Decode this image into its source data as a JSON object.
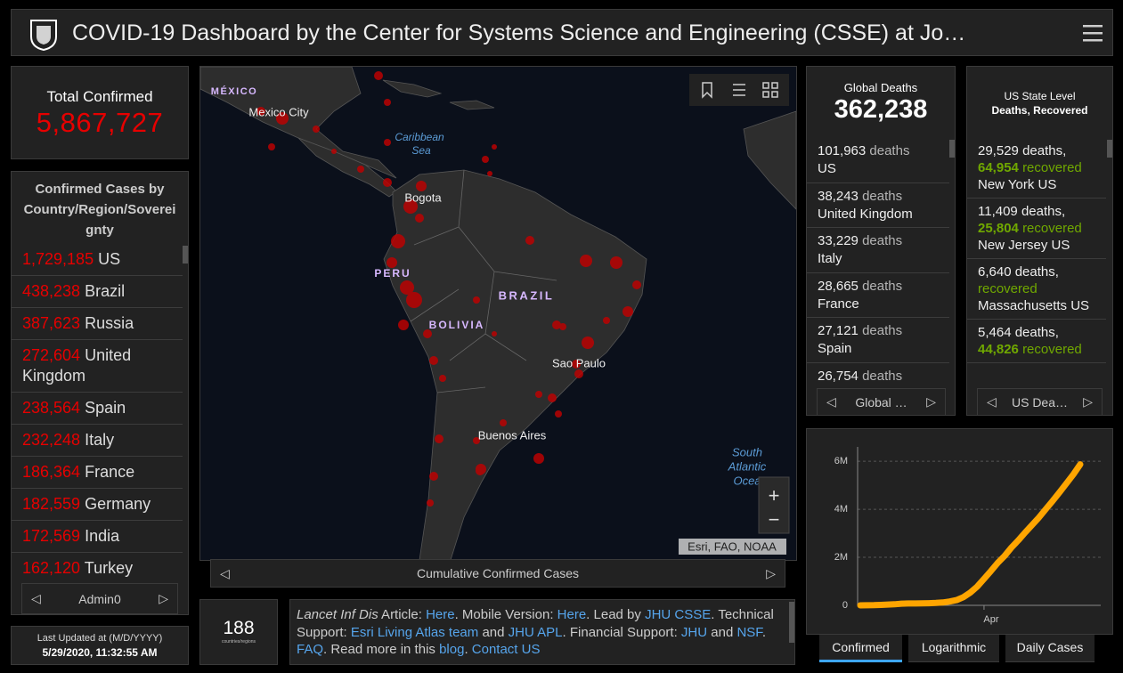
{
  "header": {
    "title": "COVID-19 Dashboard by the Center for Systems Science and Engineering (CSSE) at Jo…"
  },
  "total": {
    "label": "Total Confirmed",
    "value": "5,867,727"
  },
  "countries": {
    "title": "Confirmed Cases by Country/Region/Sovereignty",
    "items": [
      {
        "value": "1,729,185",
        "name": "US"
      },
      {
        "value": "438,238",
        "name": "Brazil"
      },
      {
        "value": "387,623",
        "name": "Russia"
      },
      {
        "value": "272,604",
        "name": "United Kingdom"
      },
      {
        "value": "238,564",
        "name": "Spain"
      },
      {
        "value": "232,248",
        "name": "Italy"
      },
      {
        "value": "186,364",
        "name": "France"
      },
      {
        "value": "182,559",
        "name": "Germany"
      },
      {
        "value": "172,569",
        "name": "India"
      },
      {
        "value": "162,120",
        "name": "Turkey"
      }
    ],
    "nav": "Admin0"
  },
  "updated": {
    "label": "Last Updated at (M/D/YYYY)",
    "value": "5/29/2020, 11:32:55 AM"
  },
  "map": {
    "labels": [
      "MÉXICO",
      "Mexico City",
      "Caribbean",
      "Sea",
      "Bogota",
      "PERU",
      "BRAZIL",
      "BOLIVIA",
      "Sao Paulo",
      "Buenos Aires",
      "South",
      "Atlantic",
      "Ocea"
    ],
    "attribution": "Esri, FAO, NOAA",
    "caption": "Cumulative Confirmed Cases"
  },
  "count": {
    "value": "188",
    "label": "countries/regions"
  },
  "info": {
    "segments": [
      {
        "text": "Lancet Inf Dis",
        "style": "italic"
      },
      {
        "text": " Article: "
      },
      {
        "text": "Here",
        "style": "link"
      },
      {
        "text": ". Mobile Version: "
      },
      {
        "text": "Here",
        "style": "link"
      },
      {
        "text": ". Lead by "
      },
      {
        "text": "JHU CSSE",
        "style": "link"
      },
      {
        "text": ". Technical Support: "
      },
      {
        "text": "Esri Living Atlas team",
        "style": "link"
      },
      {
        "text": " and "
      },
      {
        "text": "JHU APL",
        "style": "link"
      },
      {
        "text": ". Financial Support: "
      },
      {
        "text": "JHU",
        "style": "link"
      },
      {
        "text": " and "
      },
      {
        "text": "NSF",
        "style": "link"
      },
      {
        "text": ". "
      },
      {
        "text": "FAQ",
        "style": "link"
      },
      {
        "text": ". Read more in this "
      },
      {
        "text": "blog",
        "style": "link"
      },
      {
        "text": ". "
      },
      {
        "text": "Contact US",
        "style": "link"
      }
    ]
  },
  "global": {
    "title": "Global Deaths",
    "value": "362,238",
    "unit": "deaths",
    "items": [
      {
        "count": "101,963",
        "place": "US"
      },
      {
        "count": "38,243",
        "place": "United Kingdom"
      },
      {
        "count": "33,229",
        "place": "Italy"
      },
      {
        "count": "28,665",
        "place": "France"
      },
      {
        "count": "27,121",
        "place": "Spain"
      },
      {
        "count": "26,754"
      }
    ],
    "nav": "Global …"
  },
  "us": {
    "title": "US State Level",
    "subtitle": "Deaths, Recovered",
    "deaths_word": "deaths,",
    "recovered_word": "recovered",
    "country": "US",
    "items": [
      {
        "deaths": "29,529",
        "recovered": "64,954",
        "place": "New York"
      },
      {
        "deaths": "11,409",
        "recovered": "25,804",
        "place": "New Jersey"
      },
      {
        "deaths": "6,640",
        "place": "Massachusetts"
      },
      {
        "deaths": "5,464",
        "recovered": "44,826"
      }
    ],
    "nav": "US Dea…"
  },
  "tabs": {
    "items": [
      "Confirmed",
      "Logarithmic",
      "Daily Cases"
    ],
    "active": 0
  },
  "chart_data": {
    "type": "line",
    "color": "#ffa500",
    "categories": [
      null,
      null,
      null,
      null,
      null,
      null,
      null,
      null,
      null,
      null,
      null,
      null,
      null,
      null,
      null,
      null,
      null,
      null,
      "Apr",
      null,
      null,
      null,
      null,
      null,
      null,
      null,
      null,
      null,
      null,
      null,
      null,
      null,
      null
    ],
    "values": [
      600,
      2000,
      8000,
      20000,
      34000,
      45000,
      69000,
      76000,
      79000,
      83000,
      90000,
      100000,
      120000,
      160000,
      220000,
      340000,
      530000,
      780000,
      1100000,
      1430000,
      1770000,
      2060000,
      2410000,
      2710000,
      3040000,
      3350000,
      3660000,
      4010000,
      4350000,
      4710000,
      5080000,
      5450000,
      5870000
    ],
    "ylim": [
      0,
      6300000
    ],
    "yticks": [
      0,
      {
        "value": 2000000,
        "label": "2M"
      },
      {
        "value": 4000000,
        "label": "4M"
      },
      {
        "value": 6000000,
        "label": "6M"
      }
    ],
    "grid": true
  }
}
